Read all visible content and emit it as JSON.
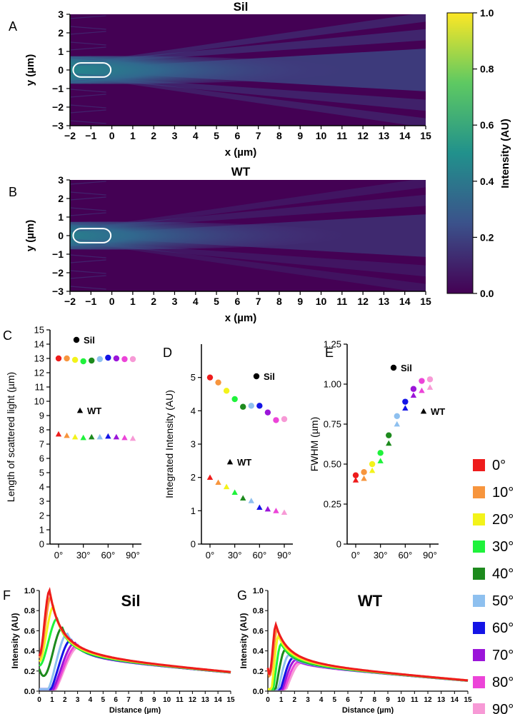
{
  "panel_letters": [
    "A",
    "B",
    "C",
    "D",
    "E",
    "F",
    "G"
  ],
  "colorbar": {
    "label": "Intensity (AU)",
    "ticks": [
      "0.0",
      "0.2",
      "0.4",
      "0.6",
      "0.8",
      "1.0"
    ],
    "colors": [
      "#440154",
      "#3b528b",
      "#21918c",
      "#5ec962",
      "#fde725"
    ]
  },
  "angle_legend": {
    "labels": [
      "0°",
      "10°",
      "20°",
      "30°",
      "40°",
      "50°",
      "60°",
      "70°",
      "80°",
      "90°"
    ],
    "colors": [
      "#ee1c1c",
      "#f7953d",
      "#f3f31a",
      "#1ff23b",
      "#1d8a1d",
      "#8ec0ef",
      "#1414e6",
      "#9b15d9",
      "#ec44d8",
      "#f79ad6"
    ]
  },
  "chart_data": [
    {
      "id": "A",
      "type": "heatmap",
      "title": "Sil",
      "xlabel": "x (µm)",
      "ylabel": "y (µm)",
      "xlim": [
        -2,
        15
      ],
      "ylim": [
        -3,
        3
      ],
      "xticks": [
        "−2",
        "−1",
        "0",
        "1",
        "2",
        "3",
        "4",
        "5",
        "6",
        "7",
        "8",
        "9",
        "10",
        "11",
        "12",
        "13",
        "14",
        "15"
      ],
      "yticks": [
        "3",
        "2",
        "1",
        "0",
        "−1",
        "−2",
        "−3"
      ],
      "peak_intensity": 1.0
    },
    {
      "id": "B",
      "type": "heatmap",
      "title": "WT",
      "xlabel": "x (µm)",
      "ylabel": "y (µm)",
      "xlim": [
        -2,
        15
      ],
      "ylim": [
        -3,
        3
      ],
      "xticks": [
        "−2",
        "−1",
        "0",
        "1",
        "2",
        "3",
        "4",
        "5",
        "6",
        "7",
        "8",
        "9",
        "10",
        "11",
        "12",
        "13",
        "14",
        "15"
      ],
      "yticks": [
        "3",
        "2",
        "1",
        "0",
        "−1",
        "−2",
        "−3"
      ],
      "peak_intensity": 0.65
    },
    {
      "id": "C",
      "type": "scatter",
      "ylabel": "Length of scattered light  (µm)",
      "ylim": [
        0,
        15
      ],
      "yticks": [
        "0",
        "1",
        "2",
        "3",
        "4",
        "5",
        "6",
        "7",
        "8",
        "9",
        "10",
        "11",
        "12",
        "13",
        "14",
        "15"
      ],
      "xticks": [
        "0°",
        "30°",
        "60°",
        "90°"
      ],
      "x": [
        0,
        10,
        20,
        30,
        40,
        50,
        60,
        70,
        80,
        90
      ],
      "series": [
        {
          "name": "Sil",
          "marker": "circle",
          "values": [
            13.0,
            13.0,
            12.9,
            12.8,
            12.85,
            12.95,
            13.05,
            13.0,
            12.95,
            12.95
          ]
        },
        {
          "name": "WT",
          "marker": "triangle",
          "values": [
            7.7,
            7.6,
            7.5,
            7.45,
            7.5,
            7.5,
            7.55,
            7.5,
            7.45,
            7.4
          ]
        }
      ]
    },
    {
      "id": "D",
      "type": "scatter",
      "ylabel": "Integrated Intensity (AU)",
      "ylim": [
        0,
        6
      ],
      "yticks": [
        "0",
        "1",
        "2",
        "3",
        "4",
        "5"
      ],
      "xticks": [
        "0°",
        "30°",
        "60°",
        "90°"
      ],
      "x": [
        0,
        10,
        20,
        30,
        40,
        50,
        60,
        70,
        80,
        90
      ],
      "series": [
        {
          "name": "Sil",
          "marker": "circle",
          "values": [
            5.0,
            4.85,
            4.6,
            4.35,
            4.12,
            4.15,
            4.15,
            3.95,
            3.72,
            3.75
          ]
        },
        {
          "name": "WT",
          "marker": "triangle",
          "values": [
            2.0,
            1.85,
            1.72,
            1.55,
            1.38,
            1.3,
            1.1,
            1.05,
            1.0,
            0.95
          ]
        }
      ]
    },
    {
      "id": "E",
      "type": "scatter",
      "ylabel": "FWHM (µm)",
      "ylim": [
        0,
        1.25
      ],
      "yticks": [
        "0",
        "0.25",
        "0.50",
        "0.75",
        "1.00",
        "1.25"
      ],
      "xticks": [
        "0°",
        "30°",
        "60°",
        "90°"
      ],
      "x": [
        0,
        10,
        20,
        30,
        40,
        50,
        60,
        70,
        80,
        90
      ],
      "series": [
        {
          "name": "Sil",
          "marker": "circle",
          "values": [
            0.43,
            0.45,
            0.5,
            0.57,
            0.68,
            0.8,
            0.89,
            0.97,
            1.02,
            1.03
          ]
        },
        {
          "name": "WT",
          "marker": "triangle",
          "values": [
            0.4,
            0.41,
            0.46,
            0.52,
            0.63,
            0.75,
            0.85,
            0.93,
            0.96,
            0.98
          ]
        }
      ]
    },
    {
      "id": "F",
      "type": "line",
      "title": "Sil",
      "xlabel": "Distance (µm)",
      "ylabel": "Intensity (AU)",
      "xlim": [
        0,
        15
      ],
      "ylim": [
        0,
        1.0
      ],
      "xticks": [
        "0",
        "1",
        "2",
        "3",
        "4",
        "5",
        "6",
        "7",
        "8",
        "9",
        "10",
        "11",
        "12",
        "13",
        "14",
        "15"
      ],
      "yticks": [
        "0.0",
        "0.2",
        "0.4",
        "0.6",
        "0.8",
        "1.0"
      ],
      "peaks": [
        {
          "angle": "0°",
          "x": 0.8,
          "y": 1.0
        },
        {
          "angle": "10°",
          "x": 0.9,
          "y": 0.94
        },
        {
          "angle": "20°",
          "x": 1.1,
          "y": 0.84
        },
        {
          "angle": "30°",
          "x": 1.4,
          "y": 0.72
        },
        {
          "angle": "40°",
          "x": 1.8,
          "y": 0.63
        },
        {
          "angle": "50°",
          "x": 2.2,
          "y": 0.57
        },
        {
          "angle": "60°",
          "x": 2.5,
          "y": 0.51
        },
        {
          "angle": "70°",
          "x": 2.8,
          "y": 0.48
        },
        {
          "angle": "80°",
          "x": 3.0,
          "y": 0.46
        },
        {
          "angle": "90°",
          "x": 3.1,
          "y": 0.44
        }
      ],
      "tail_value_at_15": 0.18
    },
    {
      "id": "G",
      "type": "line",
      "title": "WT",
      "xlabel": "Distance (µm)",
      "ylabel": "Intensity (AU)",
      "xlim": [
        0,
        15
      ],
      "ylim": [
        0,
        1.0
      ],
      "xticks": [
        "0",
        "1",
        "2",
        "3",
        "4",
        "5",
        "6",
        "7",
        "8",
        "9",
        "10",
        "11",
        "12",
        "13",
        "14",
        "15"
      ],
      "yticks": [
        "0.0",
        "0.2",
        "0.4",
        "0.6",
        "0.8",
        "1.0"
      ],
      "peaks": [
        {
          "angle": "0°",
          "x": 0.6,
          "y": 0.66
        },
        {
          "angle": "10°",
          "x": 0.7,
          "y": 0.62
        },
        {
          "angle": "20°",
          "x": 0.8,
          "y": 0.55
        },
        {
          "angle": "30°",
          "x": 1.0,
          "y": 0.47
        },
        {
          "angle": "40°",
          "x": 1.3,
          "y": 0.41
        },
        {
          "angle": "50°",
          "x": 1.6,
          "y": 0.36
        },
        {
          "angle": "60°",
          "x": 1.9,
          "y": 0.33
        },
        {
          "angle": "70°",
          "x": 2.1,
          "y": 0.31
        },
        {
          "angle": "80°",
          "x": 2.3,
          "y": 0.29
        },
        {
          "angle": "90°",
          "x": 2.5,
          "y": 0.28
        }
      ],
      "tail_value_at_15": 0.1
    }
  ]
}
